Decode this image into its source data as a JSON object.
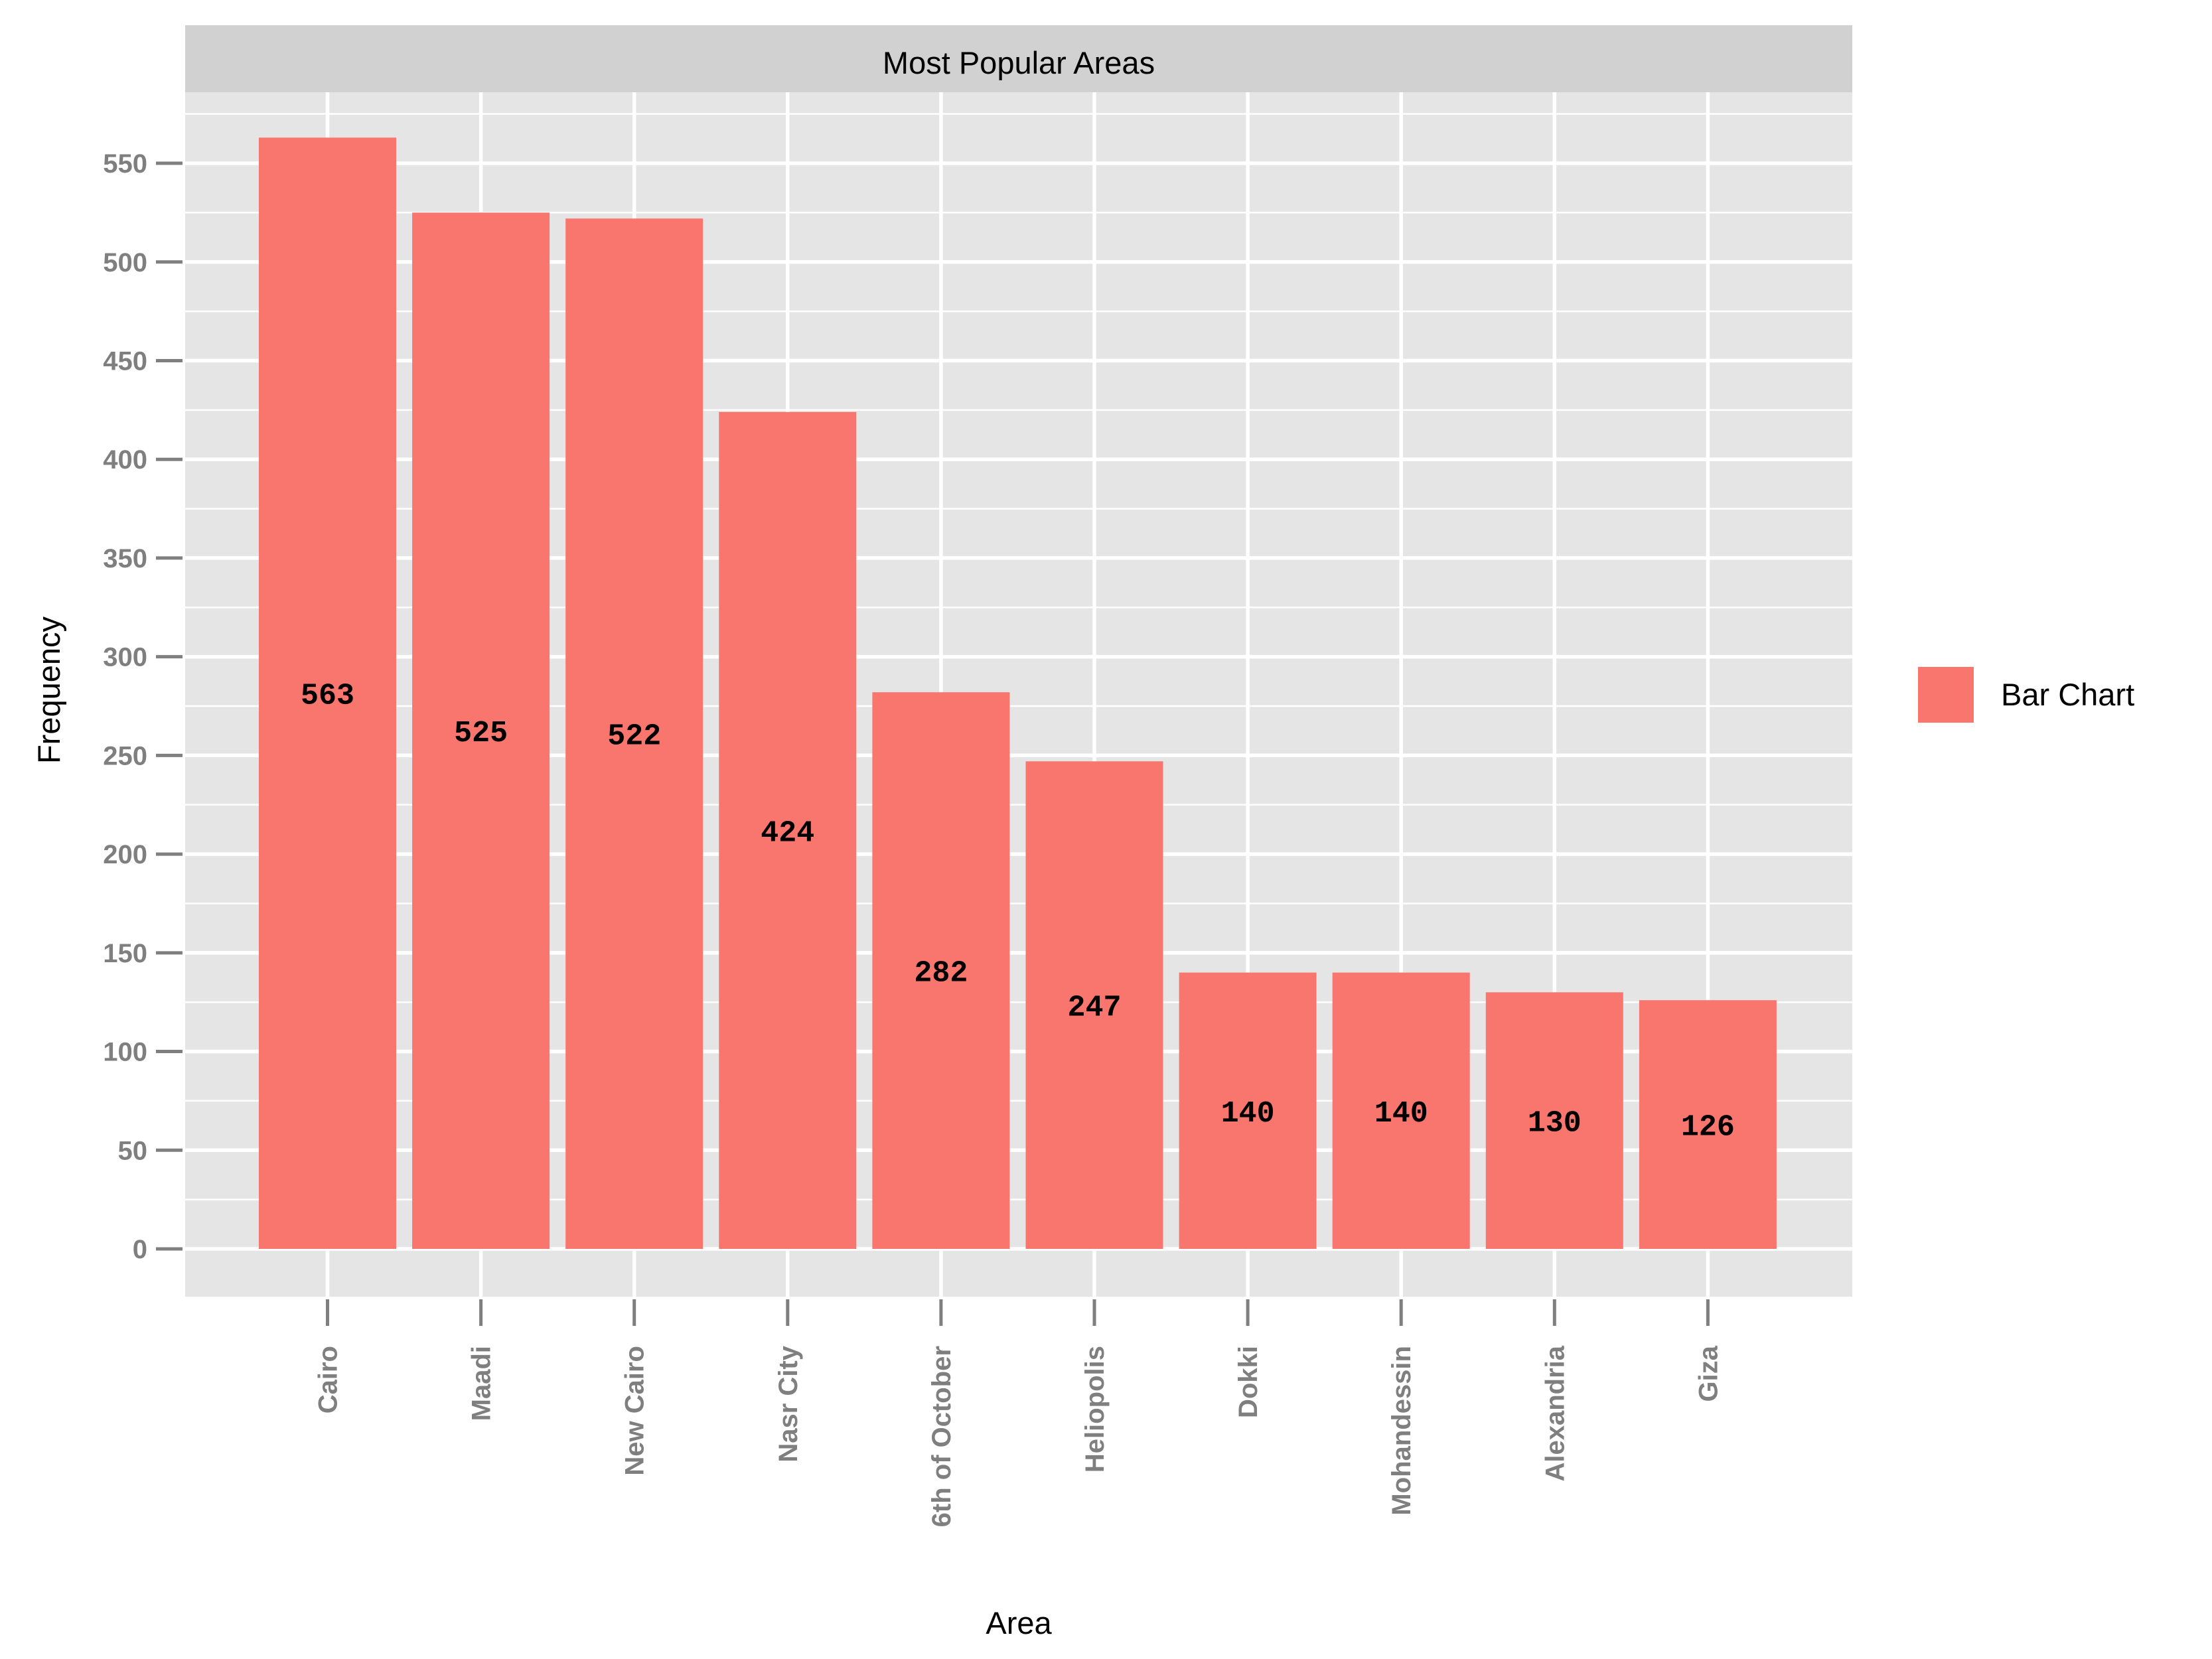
{
  "chart_data": {
    "type": "bar",
    "title": "Most Popular Areas",
    "xlabel": "Area",
    "ylabel": "Frequency",
    "categories": [
      "Cairo",
      "Maadi",
      "New Cairo",
      "Nasr City",
      "6th of October",
      "Heliopolis",
      "Dokki",
      "Mohandessin",
      "Alexandria",
      "Giza"
    ],
    "series": [
      {
        "name": "Bar Chart",
        "values": [
          563,
          525,
          522,
          424,
          282,
          247,
          140,
          140,
          130,
          126
        ]
      }
    ],
    "data_labels": [
      "563",
      "525",
      "522",
      "424",
      "282",
      "247",
      "140",
      "140",
      "130",
      "126"
    ],
    "ylim": [
      0,
      590
    ],
    "yticks": [
      0,
      50,
      100,
      150,
      200,
      250,
      300,
      350,
      400,
      450,
      500,
      550
    ],
    "grid": true,
    "legend_position": "right",
    "colors": {
      "bar": "#f8766d",
      "panel": "#e5e5e5",
      "grid": "#ffffff",
      "strip": "#d1d1d1",
      "tick_text": "#7f7f7f"
    }
  }
}
